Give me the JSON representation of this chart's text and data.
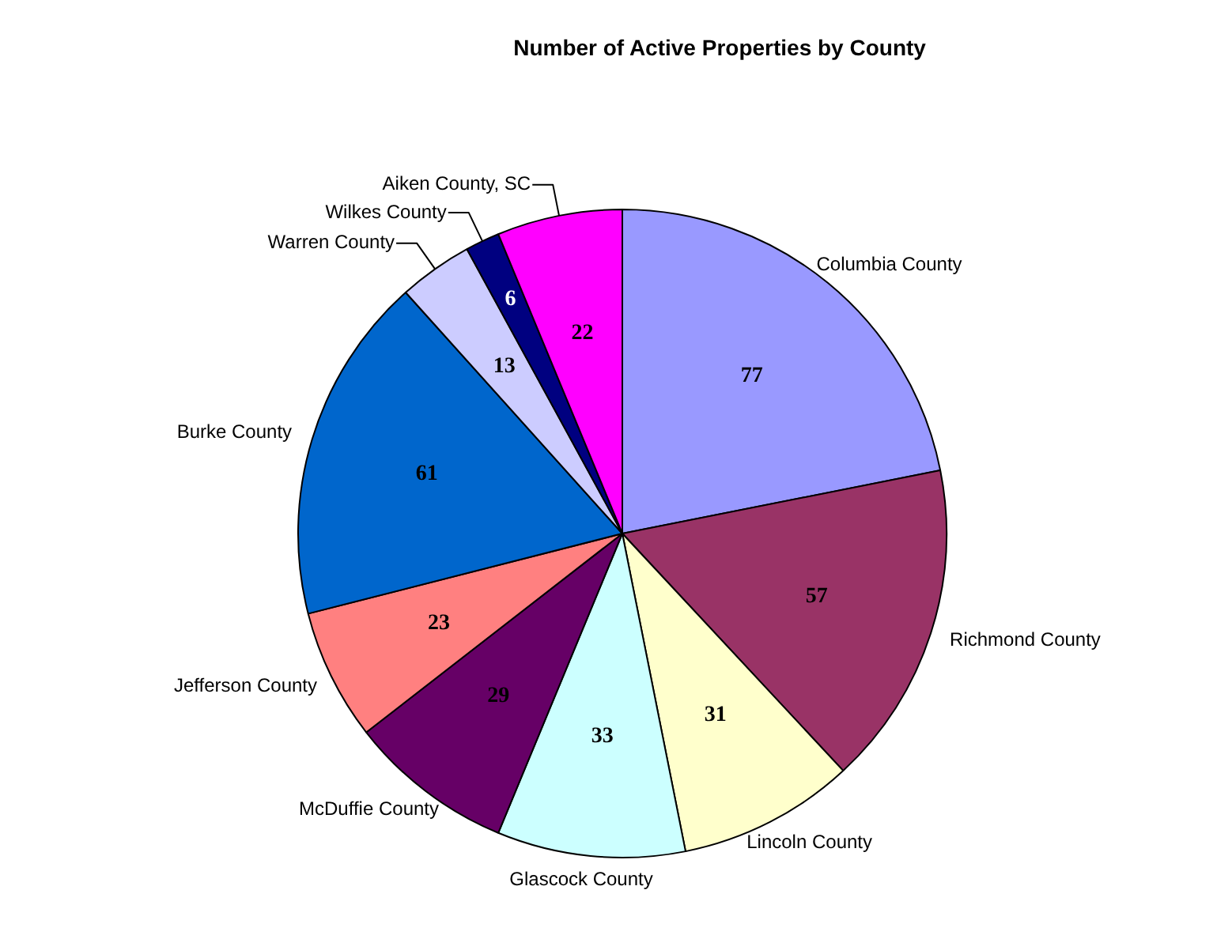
{
  "chart_data": {
    "type": "pie",
    "title": "Number of Active Properties by County",
    "categories": [
      "Columbia County",
      "Richmond County",
      "Lincoln County",
      "Glascock County",
      "McDuffie County",
      "Jefferson County",
      "Burke County",
      "Warren County",
      "Wilkes County",
      "Aiken County, SC"
    ],
    "values": [
      77,
      57,
      31,
      33,
      29,
      23,
      61,
      13,
      6,
      22
    ],
    "colors": [
      "#9999ff",
      "#993366",
      "#ffffcc",
      "#ccffff",
      "#660066",
      "#ff8080",
      "#0066cc",
      "#ccccff",
      "#000080",
      "#ff00ff"
    ],
    "data_labels": true
  }
}
